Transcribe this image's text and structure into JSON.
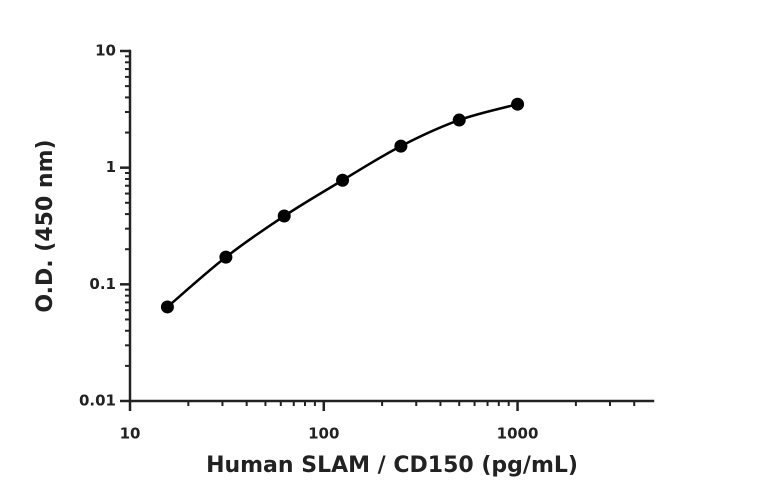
{
  "chart_data": {
    "type": "scatter",
    "x_label": "Human SLAM / CD150 (pg/mL)",
    "y_label": "O.D. (450 nm)",
    "series": [
      {
        "x": [
          15.6,
          31.25,
          62.5,
          125,
          250,
          500,
          1000
        ],
        "values": [
          0.064,
          0.171,
          0.385,
          0.78,
          1.53,
          2.56,
          3.5
        ],
        "color": "#000000",
        "line": true
      }
    ],
    "x_log": true,
    "y_log": true,
    "xlim": [
      10,
      5000
    ],
    "xticks": [
      10,
      100,
      1000
    ],
    "ylim": [
      0.01,
      10
    ],
    "yticks": [
      0.01,
      0.1,
      1,
      10
    ],
    "minor_ticks": true
  }
}
